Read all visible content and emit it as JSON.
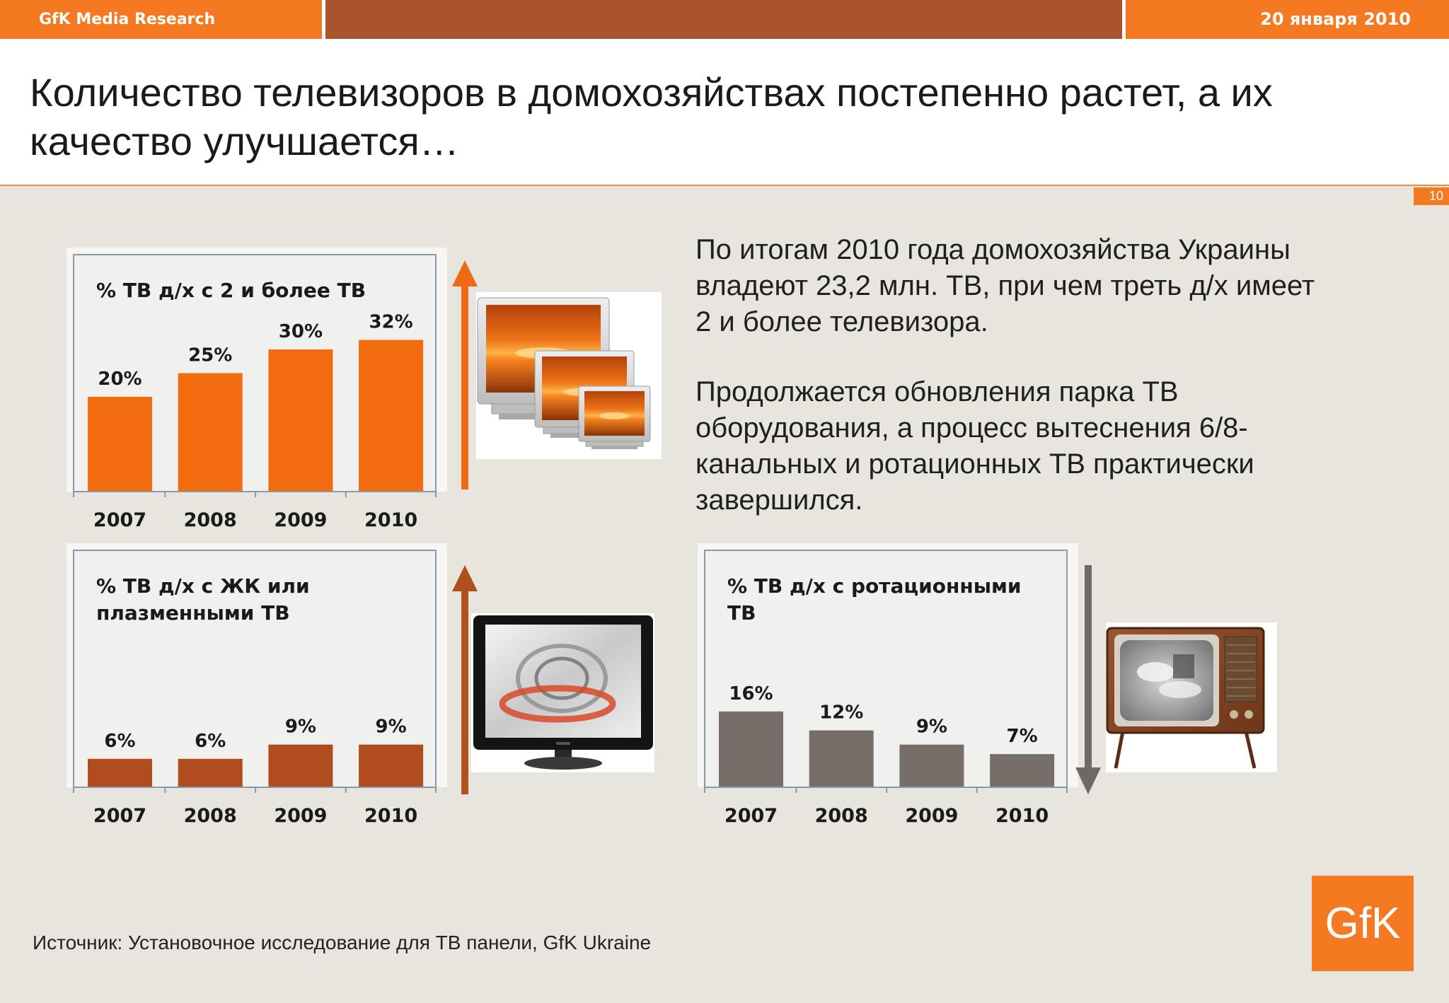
{
  "header": {
    "brand": "GfK Media Research",
    "date": "20 января 2010"
  },
  "title": {
    "text": "Количество телевизоров в домохозяйствах постепенно растет, а их\nкачество улучшается…"
  },
  "page_number": "10",
  "summary": {
    "paragraph1": "По итогам 2010 года домохозяйства Украины\nвладеют 23,2 млн. ТВ, при чем треть д/х имеет\n2 и более телевизора.",
    "paragraph2": "Продолжается обновления парка ТВ\nоборудования, а процесс вытеснения 6/8-\nканальных и ротационных ТВ практически\nзавершился."
  },
  "footer": {
    "source": "Источник: Установочное исследование для ТВ панели, GfK Ukraine"
  },
  "logo": {
    "text": "GfK"
  },
  "colors": {
    "header_orange": "#f47920",
    "header_brown": "#a9542c",
    "title_rule": "#f08a3c",
    "background": "#e8e5de"
  },
  "icons": {
    "crt_tvs": "crt-tvs-image",
    "flat_tv": "flat-panel-tv-image",
    "vintage_tv": "vintage-tv-image"
  },
  "chart_data": [
    {
      "type": "bar",
      "title": "% ТВ д/х с 2 и более ТВ",
      "categories": [
        "2007",
        "2008",
        "2009",
        "2010"
      ],
      "values": [
        20,
        25,
        30,
        32
      ],
      "value_suffix": "%",
      "ylim": [
        0,
        50
      ],
      "grid": false,
      "legend": "none",
      "bar_color": "#f26b0f",
      "trend_icon": "arrow-up-icon",
      "trend_color": "#ee6a14"
    },
    {
      "type": "bar",
      "title": "% ТВ д/х с ЖК или\nплазменными ТВ",
      "categories": [
        "2007",
        "2008",
        "2009",
        "2010"
      ],
      "values": [
        6,
        6,
        9,
        9
      ],
      "value_suffix": "%",
      "ylim": [
        0,
        50
      ],
      "grid": false,
      "legend": "none",
      "bar_color": "#b04c1e",
      "trend_icon": "arrow-up-icon",
      "trend_color": "#b0501e"
    },
    {
      "type": "bar",
      "title": "% ТВ д/х с ротационными\nТВ",
      "categories": [
        "2007",
        "2008",
        "2009",
        "2010"
      ],
      "values": [
        16,
        12,
        9,
        7
      ],
      "value_suffix": "%",
      "ylim": [
        0,
        50
      ],
      "grid": false,
      "legend": "none",
      "bar_color": "#766e69",
      "trend_icon": "arrow-down-icon",
      "trend_color": "#6d6965"
    }
  ]
}
